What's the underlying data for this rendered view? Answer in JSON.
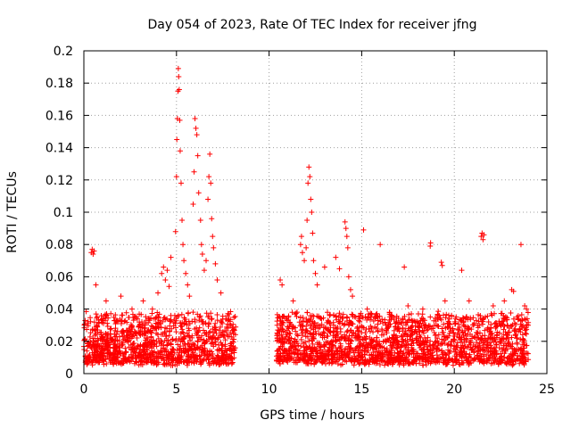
{
  "chart_data": {
    "type": "scatter",
    "title": "Day 054 of 2023, Rate Of TEC Index for receiver jfng",
    "xlabel": "GPS time / hours",
    "ylabel": "ROTI / TECUs",
    "xlim": [
      0,
      25
    ],
    "ylim": [
      0,
      0.2
    ],
    "xticks": [
      0,
      5,
      10,
      15,
      20,
      25
    ],
    "yticks": [
      0,
      0.02,
      0.04,
      0.06,
      0.08,
      0.1,
      0.12,
      0.14,
      0.16,
      0.18,
      0.2
    ],
    "xtick_labels": [
      "0",
      "5",
      "10",
      "15",
      "20",
      "25"
    ],
    "ytick_labels": [
      "0",
      "0.02",
      "0.04",
      "0.06",
      "0.08",
      "0.1",
      "0.12",
      "0.14",
      "0.16",
      "0.18",
      "0.2"
    ],
    "grid": true,
    "marker": "+",
    "marker_color": "#ff0000",
    "series": [
      {
        "name": "ROTI",
        "points": [
          [
            0.4,
            0.075
          ],
          [
            0.45,
            0.077
          ],
          [
            0.5,
            0.074
          ],
          [
            0.55,
            0.076
          ],
          [
            0.65,
            0.055
          ],
          [
            1.2,
            0.045
          ],
          [
            2.0,
            0.048
          ],
          [
            2.6,
            0.04
          ],
          [
            3.2,
            0.045
          ],
          [
            3.7,
            0.04
          ],
          [
            4.0,
            0.05
          ],
          [
            4.2,
            0.062
          ],
          [
            4.3,
            0.066
          ],
          [
            4.4,
            0.058
          ],
          [
            4.5,
            0.064
          ],
          [
            4.6,
            0.054
          ],
          [
            4.7,
            0.072
          ],
          [
            4.95,
            0.088
          ],
          [
            5.0,
            0.122
          ],
          [
            5.02,
            0.145
          ],
          [
            5.05,
            0.158
          ],
          [
            5.08,
            0.175
          ],
          [
            5.1,
            0.189
          ],
          [
            5.12,
            0.184
          ],
          [
            5.15,
            0.176
          ],
          [
            5.18,
            0.157
          ],
          [
            5.2,
            0.138
          ],
          [
            5.25,
            0.118
          ],
          [
            5.3,
            0.095
          ],
          [
            5.35,
            0.08
          ],
          [
            5.4,
            0.07
          ],
          [
            5.5,
            0.062
          ],
          [
            5.6,
            0.055
          ],
          [
            5.7,
            0.048
          ],
          [
            5.9,
            0.105
          ],
          [
            5.95,
            0.125
          ],
          [
            6.0,
            0.158
          ],
          [
            6.05,
            0.152
          ],
          [
            6.1,
            0.148
          ],
          [
            6.15,
            0.135
          ],
          [
            6.2,
            0.112
          ],
          [
            6.3,
            0.095
          ],
          [
            6.35,
            0.08
          ],
          [
            6.4,
            0.074
          ],
          [
            6.5,
            0.064
          ],
          [
            6.6,
            0.07
          ],
          [
            6.7,
            0.108
          ],
          [
            6.75,
            0.122
          ],
          [
            6.8,
            0.136
          ],
          [
            6.85,
            0.118
          ],
          [
            6.9,
            0.096
          ],
          [
            6.95,
            0.085
          ],
          [
            7.0,
            0.078
          ],
          [
            7.1,
            0.068
          ],
          [
            7.2,
            0.058
          ],
          [
            7.4,
            0.05
          ],
          [
            10.6,
            0.058
          ],
          [
            10.7,
            0.055
          ],
          [
            11.3,
            0.045
          ],
          [
            11.7,
            0.08
          ],
          [
            11.75,
            0.085
          ],
          [
            11.8,
            0.075
          ],
          [
            11.9,
            0.07
          ],
          [
            12.0,
            0.078
          ],
          [
            12.05,
            0.095
          ],
          [
            12.1,
            0.118
          ],
          [
            12.15,
            0.128
          ],
          [
            12.2,
            0.122
          ],
          [
            12.25,
            0.108
          ],
          [
            12.3,
            0.1
          ],
          [
            12.35,
            0.087
          ],
          [
            12.4,
            0.07
          ],
          [
            12.5,
            0.062
          ],
          [
            12.6,
            0.055
          ],
          [
            13.0,
            0.066
          ],
          [
            13.6,
            0.072
          ],
          [
            13.8,
            0.065
          ],
          [
            14.1,
            0.094
          ],
          [
            14.15,
            0.09
          ],
          [
            14.2,
            0.085
          ],
          [
            14.25,
            0.078
          ],
          [
            14.3,
            0.06
          ],
          [
            14.4,
            0.052
          ],
          [
            14.5,
            0.048
          ],
          [
            15.1,
            0.089
          ],
          [
            15.3,
            0.04
          ],
          [
            16.0,
            0.08
          ],
          [
            16.5,
            0.038
          ],
          [
            17.3,
            0.066
          ],
          [
            17.5,
            0.042
          ],
          [
            18.3,
            0.04
          ],
          [
            18.7,
            0.079
          ],
          [
            18.72,
            0.081
          ],
          [
            19.3,
            0.069
          ],
          [
            19.35,
            0.067
          ],
          [
            19.5,
            0.045
          ],
          [
            20.4,
            0.064
          ],
          [
            20.8,
            0.045
          ],
          [
            21.45,
            0.085
          ],
          [
            21.5,
            0.087
          ],
          [
            21.55,
            0.083
          ],
          [
            21.6,
            0.086
          ],
          [
            22.1,
            0.042
          ],
          [
            22.7,
            0.045
          ],
          [
            23.1,
            0.052
          ],
          [
            23.2,
            0.051
          ],
          [
            23.6,
            0.08
          ],
          [
            23.8,
            0.042
          ],
          [
            23.9,
            0.04
          ]
        ]
      }
    ],
    "background_band": {
      "description": "dense band of ROTI values",
      "segments": [
        {
          "x": [
            0,
            8.2
          ],
          "y_low": 0.005,
          "y_high": 0.035
        },
        {
          "x": [
            10.4,
            24.0
          ],
          "y_low": 0.005,
          "y_high": 0.035
        }
      ]
    }
  }
}
